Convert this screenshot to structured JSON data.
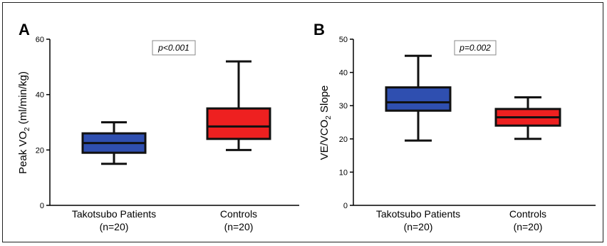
{
  "chart_data": [
    {
      "type": "box",
      "panel": "A",
      "ylabel_main": "Peak VO",
      "ylabel_sub": "2",
      "ylabel_tail": " (ml/min/kg)",
      "ylim": [
        0,
        60
      ],
      "yticks": [
        0,
        20,
        40,
        60
      ],
      "annotation": "p<0.001",
      "categories": [
        {
          "line1": "Takotsubo Patients",
          "line2": "(n=20)"
        },
        {
          "line1": "Controls",
          "line2": "(n=20)"
        }
      ],
      "boxes": [
        {
          "min": 15,
          "q1": 19,
          "median": 22.5,
          "q3": 26,
          "max": 30,
          "color": "#2f4fb0"
        },
        {
          "min": 20,
          "q1": 24,
          "median": 28.5,
          "q3": 35,
          "max": 52,
          "color": "#ee2020"
        }
      ]
    },
    {
      "type": "box",
      "panel": "B",
      "ylabel_main": "VE/VCO",
      "ylabel_sub": "2",
      "ylabel_tail": " Slope",
      "ylim": [
        0,
        50
      ],
      "yticks": [
        0,
        10,
        20,
        30,
        40,
        50
      ],
      "annotation": "p=0.002",
      "categories": [
        {
          "line1": "Takotsubo Patients",
          "line2": "(n=20)"
        },
        {
          "line1": "Controls",
          "line2": "(n=20)"
        }
      ],
      "boxes": [
        {
          "min": 19.5,
          "q1": 28.5,
          "median": 31,
          "q3": 35.5,
          "max": 45,
          "color": "#2f4fb0"
        },
        {
          "min": 20,
          "q1": 24,
          "median": 26.5,
          "q3": 29,
          "max": 32.5,
          "color": "#ee2020"
        }
      ]
    }
  ]
}
